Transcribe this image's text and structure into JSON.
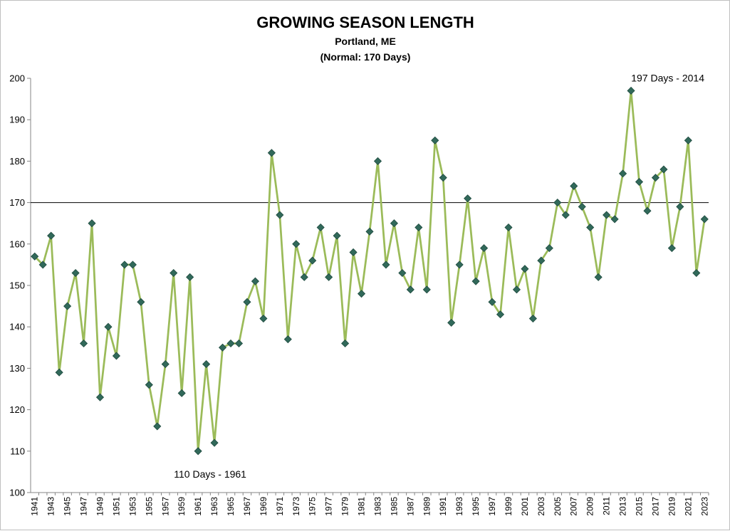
{
  "chart_data": {
    "type": "line",
    "title": "GROWING SEASON LENGTH",
    "subtitle": "Portland, ME",
    "subtitle2": "(Normal: 170 Days)",
    "xlabel": "",
    "ylabel": "",
    "ylim": [
      100,
      200
    ],
    "y_ticks": [
      100,
      110,
      120,
      130,
      140,
      150,
      160,
      170,
      180,
      190,
      200
    ],
    "normal_line": 170,
    "x": [
      1941,
      1942,
      1943,
      1944,
      1945,
      1946,
      1947,
      1948,
      1949,
      1950,
      1951,
      1952,
      1953,
      1954,
      1955,
      1956,
      1957,
      1958,
      1959,
      1960,
      1961,
      1962,
      1963,
      1964,
      1965,
      1966,
      1967,
      1968,
      1969,
      1970,
      1971,
      1972,
      1973,
      1974,
      1975,
      1976,
      1977,
      1978,
      1979,
      1980,
      1981,
      1982,
      1983,
      1984,
      1985,
      1986,
      1987,
      1988,
      1989,
      1990,
      1991,
      1992,
      1993,
      1994,
      1995,
      1996,
      1997,
      1998,
      1999,
      2000,
      2001,
      2002,
      2003,
      2004,
      2005,
      2006,
      2007,
      2008,
      2009,
      2010,
      2011,
      2012,
      2013,
      2014,
      2015,
      2016,
      2017,
      2018,
      2019,
      2020,
      2021,
      2022,
      2023
    ],
    "x_tick_labels": [
      "1941",
      "1943",
      "1945",
      "1947",
      "1949",
      "1951",
      "1953",
      "1955",
      "1957",
      "1959",
      "1961",
      "1963",
      "1965",
      "1967",
      "1969",
      "1971",
      "1973",
      "1975",
      "1977",
      "1979",
      "1981",
      "1983",
      "1985",
      "1987",
      "1989",
      "1991",
      "1993",
      "1995",
      "1997",
      "1999",
      "2001",
      "2003",
      "2005",
      "2007",
      "2009",
      "2011",
      "2013",
      "2015",
      "2017",
      "2019",
      "2021",
      "2023"
    ],
    "series": [
      {
        "name": "Growing Season Length (Days)",
        "color": "#9bbb59",
        "marker_color": "#31695a",
        "values": [
          157,
          155,
          162,
          129,
          145,
          153,
          136,
          165,
          123,
          140,
          133,
          155,
          155,
          146,
          126,
          116,
          131,
          153,
          124,
          152,
          110,
          131,
          112,
          135,
          136,
          136,
          146,
          151,
          142,
          182,
          167,
          137,
          160,
          152,
          156,
          164,
          152,
          162,
          136,
          158,
          148,
          163,
          180,
          155,
          165,
          153,
          149,
          164,
          149,
          185,
          176,
          141,
          155,
          171,
          151,
          159,
          146,
          143,
          164,
          149,
          154,
          142,
          156,
          159,
          170,
          167,
          174,
          169,
          164,
          152,
          167,
          166,
          177,
          197,
          175,
          168,
          176,
          178,
          159,
          169,
          185,
          153,
          166
        ]
      }
    ],
    "annotations": [
      {
        "text": "197 Days - 2014",
        "year": 2014,
        "value": 197
      },
      {
        "text": "110 Days - 1961",
        "year": 1961,
        "value": 110
      }
    ],
    "grid": false,
    "legend": "none"
  }
}
